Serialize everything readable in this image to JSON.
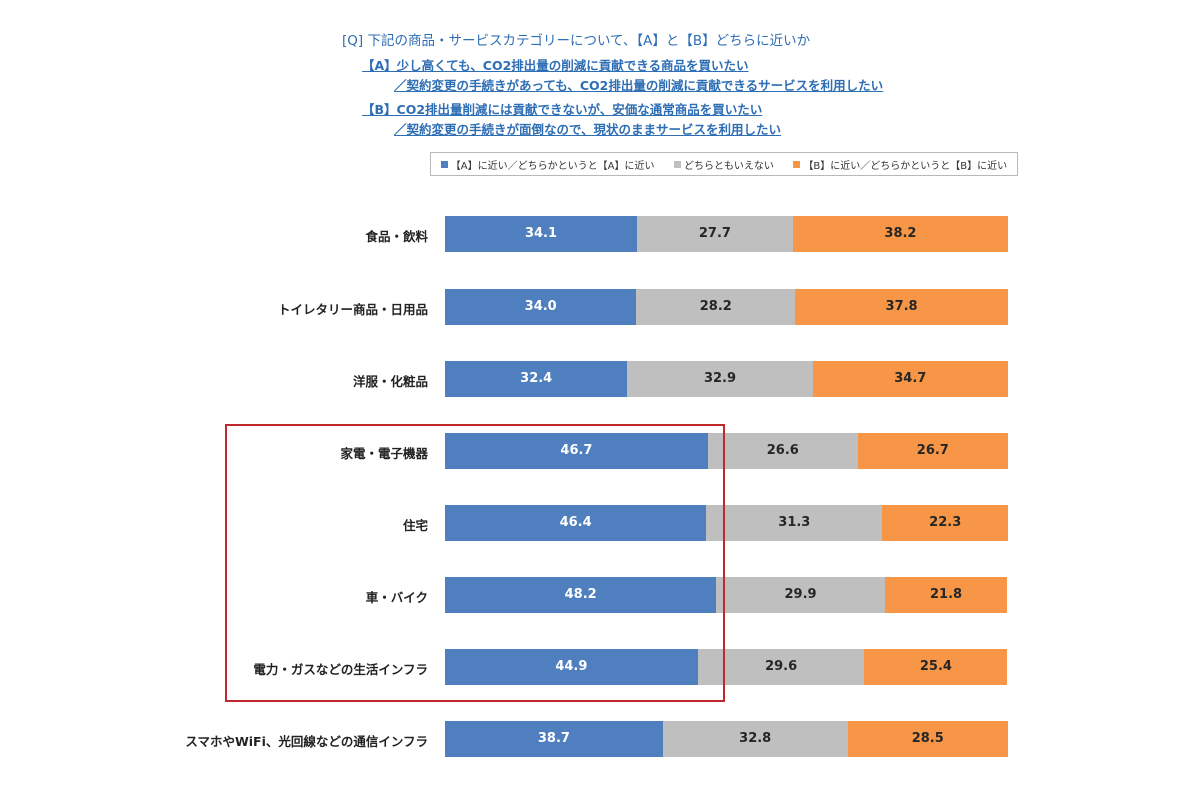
{
  "question": {
    "header": "[Q] 下記の商品・サービスカテゴリーについて、【A】と【B】どちらに近いか",
    "option_a_line1": "【A】少し高くても、CO2排出量の削減に貢献できる商品を買いたい",
    "option_a_line2": "／契約変更の手続きがあっても、CO2排出量の削減に貢献できるサービスを利用したい",
    "option_b_line1": "【B】CO2排出量削減には貢献できないが、安価な通常商品を買いたい",
    "option_b_line2": "／契約変更の手続きが面倒なので、現状のままサービスを利用したい"
  },
  "chart_data": {
    "type": "bar",
    "orientation": "horizontal",
    "stacked": true,
    "percent_scale": [
      0,
      100
    ],
    "legend_position": "top",
    "categories": [
      "食品・飲料",
      "トイレタリー商品・日用品",
      "洋服・化粧品",
      "家電・電子機器",
      "住宅",
      "車・バイク",
      "電力・ガスなどの生活インフラ",
      "スマホやWiFi、光回線などの通信インフラ"
    ],
    "series": [
      {
        "name": "【A】に近い／どちらかというと【A】に近い",
        "color": "#4f7fbf",
        "label_color": "#ffffff",
        "values": [
          34.1,
          34.0,
          32.4,
          46.7,
          46.4,
          48.2,
          44.9,
          38.7
        ]
      },
      {
        "name": "どちらともいえない",
        "color": "#bfbfbf",
        "label_color": "#262626",
        "values": [
          27.7,
          28.2,
          32.9,
          26.6,
          31.3,
          29.9,
          29.6,
          32.8
        ]
      },
      {
        "name": "【B】に近い／どちらかというと【B】に近い",
        "color": "#f79646",
        "label_color": "#262626",
        "values": [
          38.2,
          37.8,
          34.7,
          26.7,
          22.3,
          21.8,
          25.4,
          28.5
        ]
      }
    ],
    "highlight": {
      "color": "#c0282d",
      "categories": [
        "家電・電子機器",
        "住宅",
        "車・バイク",
        "電力・ガスなどの生活インフラ"
      ]
    }
  }
}
